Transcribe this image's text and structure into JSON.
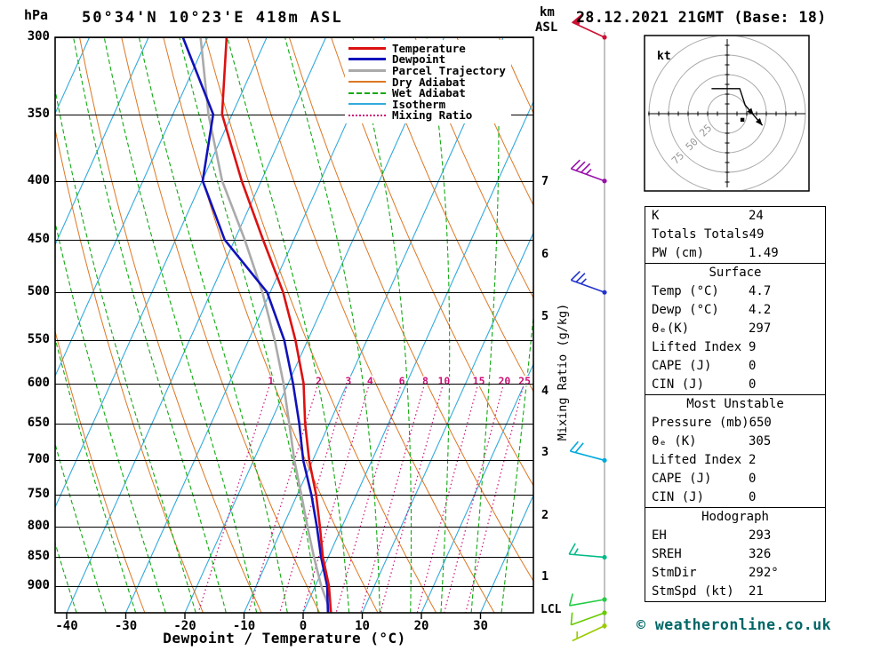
{
  "header": {
    "station_title": "50°34'N 10°23'E 418m ASL",
    "datetime": "28.12.2021 21GMT (Base: 18)"
  },
  "axes": {
    "pressure_unit": "hPa",
    "pressure_ticks": [
      300,
      350,
      400,
      450,
      500,
      550,
      600,
      650,
      700,
      750,
      800,
      850,
      900
    ],
    "x_label": "Dewpoint / Temperature (°C)",
    "x_ticks": [
      -40,
      -30,
      -20,
      -10,
      0,
      10,
      20,
      30
    ],
    "km_unit": "km",
    "asl_unit": "ASL",
    "km_ticks": [
      {
        "label": "7",
        "pressure": 401
      },
      {
        "label": "6",
        "pressure": 464
      },
      {
        "label": "5",
        "pressure": 525
      },
      {
        "label": "4",
        "pressure": 610
      },
      {
        "label": "3",
        "pressure": 690
      },
      {
        "label": "2",
        "pressure": 782
      },
      {
        "label": "1",
        "pressure": 885
      }
    ],
    "lcl_label": "LCL",
    "mixing_ratio_axis_label": "Mixing Ratio (g/kg)"
  },
  "legend": [
    {
      "label": "Temperature",
      "color": "#dd1111",
      "style": "solid",
      "weight": 3
    },
    {
      "label": "Dewpoint",
      "color": "#1111bb",
      "style": "solid",
      "weight": 3
    },
    {
      "label": "Parcel Trajectory",
      "color": "#aaaaaa",
      "style": "solid",
      "weight": 3
    },
    {
      "label": "Dry Adiabat",
      "color": "#dd7722",
      "style": "solid",
      "weight": 2
    },
    {
      "label": "Wet Adiabat",
      "color": "#11aa11",
      "style": "dashed",
      "weight": 2
    },
    {
      "label": "Isotherm",
      "color": "#33aadd",
      "style": "solid",
      "weight": 2
    },
    {
      "label": "Mixing Ratio",
      "color": "#cc1177",
      "style": "dotted",
      "weight": 2
    }
  ],
  "chart_data": {
    "type": "skewt-logp",
    "pressure_axis_hpa": [
      300,
      950
    ],
    "temperature_axis_c": [
      -40,
      38
    ],
    "isotherm_step_c": 10,
    "dry_adiabat_step_k": 10,
    "wet_adiabat_step_c": 5,
    "mixing_ratio_lines_gkg": [
      1,
      2,
      3,
      4,
      6,
      8,
      10,
      15,
      20,
      25
    ],
    "temperature_profile": [
      [
        950,
        4.7
      ],
      [
        900,
        2.3
      ],
      [
        850,
        -0.9
      ],
      [
        800,
        -3.7
      ],
      [
        750,
        -6.8
      ],
      [
        700,
        -10.6
      ],
      [
        650,
        -14.1
      ],
      [
        600,
        -17.4
      ],
      [
        550,
        -22.1
      ],
      [
        500,
        -27.8
      ],
      [
        450,
        -35.2
      ],
      [
        400,
        -43.3
      ],
      [
        350,
        -51.7
      ],
      [
        300,
        -56.8
      ]
    ],
    "dewpoint_profile": [
      [
        950,
        4.2
      ],
      [
        900,
        2.0
      ],
      [
        850,
        -1.2
      ],
      [
        800,
        -4.2
      ],
      [
        750,
        -7.6
      ],
      [
        700,
        -11.6
      ],
      [
        650,
        -15.1
      ],
      [
        600,
        -19.2
      ],
      [
        550,
        -24.0
      ],
      [
        500,
        -30.5
      ],
      [
        450,
        -41.7
      ],
      [
        400,
        -49.9
      ],
      [
        350,
        -53.2
      ],
      [
        300,
        -64.2
      ]
    ],
    "parcel_profile": [
      [
        950,
        4.7
      ],
      [
        900,
        1.0
      ],
      [
        850,
        -2.4
      ],
      [
        800,
        -5.8
      ],
      [
        750,
        -9.3
      ],
      [
        700,
        -13.1
      ],
      [
        650,
        -16.8
      ],
      [
        600,
        -20.8
      ],
      [
        550,
        -25.6
      ],
      [
        500,
        -31.3
      ],
      [
        450,
        -38.3
      ],
      [
        400,
        -46.6
      ],
      [
        350,
        -54.0
      ],
      [
        300,
        -61.2
      ]
    ],
    "wind_barbs": [
      {
        "pressure": 300,
        "speed_kt": 50,
        "dir_deg": 295,
        "color": "#cc1133"
      },
      {
        "pressure": 400,
        "speed_kt": 35,
        "dir_deg": 290,
        "color": "#9911aa"
      },
      {
        "pressure": 500,
        "speed_kt": 25,
        "dir_deg": 290,
        "color": "#2233cc"
      },
      {
        "pressure": 700,
        "speed_kt": 20,
        "dir_deg": 285,
        "color": "#00aadd"
      },
      {
        "pressure": 850,
        "speed_kt": 15,
        "dir_deg": 275,
        "color": "#00bb88"
      },
      {
        "pressure": 925,
        "speed_kt": 10,
        "dir_deg": 260,
        "color": "#22cc44"
      },
      {
        "pressure": 950,
        "speed_kt": 10,
        "dir_deg": 250,
        "color": "#66cc00"
      },
      {
        "pressure": 975,
        "speed_kt": 5,
        "dir_deg": 245,
        "color": "#99cc00"
      }
    ]
  },
  "hodograph": {
    "unit_label": "kt",
    "ring_step_kt": 25,
    "ring_labels": [
      "25",
      "50",
      "75"
    ],
    "trace_uv_kt": [
      [
        -20,
        32
      ],
      [
        16,
        32
      ],
      [
        23,
        11
      ],
      [
        34,
        -2
      ],
      [
        45,
        -15
      ]
    ],
    "storm_dir_deg": 292,
    "storm_speed_kt": 21
  },
  "stats": {
    "sections": [
      {
        "header": null,
        "rows": [
          [
            "K",
            "24"
          ],
          [
            "Totals Totals",
            "49"
          ],
          [
            "PW (cm)",
            "1.49"
          ]
        ]
      },
      {
        "header": "Surface",
        "rows": [
          [
            "Temp (°C)",
            "4.7"
          ],
          [
            "Dewp (°C)",
            "4.2"
          ],
          [
            "θₑ(K)",
            "297"
          ],
          [
            "Lifted Index",
            "9"
          ],
          [
            "CAPE (J)",
            "0"
          ],
          [
            "CIN (J)",
            "0"
          ]
        ]
      },
      {
        "header": "Most Unstable",
        "rows": [
          [
            "Pressure (mb)",
            "650"
          ],
          [
            "θₑ (K)",
            "305"
          ],
          [
            "Lifted Index",
            "2"
          ],
          [
            "CAPE (J)",
            "0"
          ],
          [
            "CIN (J)",
            "0"
          ]
        ]
      },
      {
        "header": "Hodograph",
        "rows": [
          [
            "EH",
            "293"
          ],
          [
            "SREH",
            "326"
          ],
          [
            "StmDir",
            "292°"
          ],
          [
            "StmSpd (kt)",
            "21"
          ]
        ]
      }
    ]
  },
  "footer": {
    "copyright": "© weatheronline.co.uk"
  },
  "colors": {
    "temperature": "#dd1111",
    "dewpoint": "#1111bb",
    "parcel": "#aaaaaa",
    "dry_adiabat": "#dd7722",
    "wet_adiabat": "#11aa11",
    "isotherm": "#33aadd",
    "mixing_ratio": "#cc1177",
    "grid": "#000000",
    "barb_axis": "#999999",
    "hodo_ring": "#aaaaaa",
    "footer_text": "#006666"
  }
}
